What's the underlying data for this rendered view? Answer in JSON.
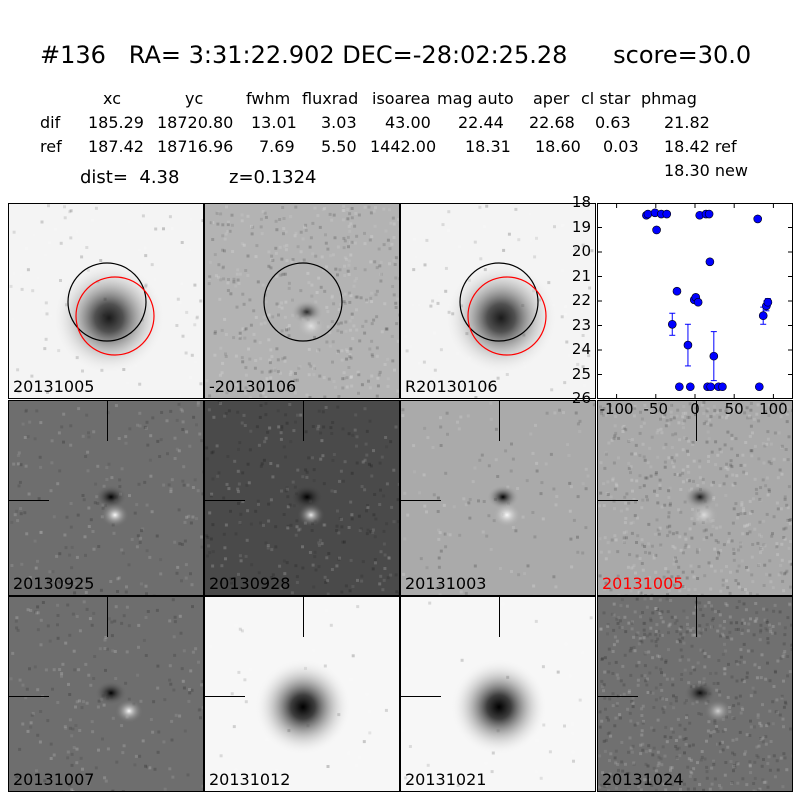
{
  "header": {
    "title": "#136   RA= 3:31:22.902 DEC=-28:02:25.28      score=30.0",
    "columns": [
      "xc",
      "yc",
      "fwhm",
      "fluxrad",
      "isoarea",
      "mag auto",
      "aper",
      "cl star",
      "phmag"
    ],
    "rows": [
      {
        "label": "dif",
        "values": [
          "185.29",
          "18720.80",
          "13.01",
          "3.03",
          "43.00",
          "22.44",
          "22.68",
          "0.63",
          "21.82"
        ]
      },
      {
        "label": "ref",
        "values": [
          "187.42",
          "18716.96",
          "7.69",
          "5.50",
          "1442.00",
          "18.31",
          "18.60",
          "0.03",
          "18.42 ref"
        ]
      }
    ],
    "extra_phmag": "18.30 new",
    "dist_text": "dist=  4.38",
    "z_text": "z=0.1324"
  },
  "panels": [
    {
      "label": "20131005",
      "style": "ref",
      "circles": true,
      "red": false
    },
    {
      "label": "-20130106",
      "style": "dif",
      "circles": true,
      "red": false
    },
    {
      "label": "R20130106",
      "style": "ref",
      "circles": true,
      "red": false
    },
    {
      "label": "20130925",
      "style": "dipole-dark",
      "circles": false,
      "red": false
    },
    {
      "label": "20130928",
      "style": "dipole-darker",
      "circles": false,
      "red": false
    },
    {
      "label": "20131003",
      "style": "dipole-light",
      "circles": false,
      "red": false
    },
    {
      "label": "20131005",
      "style": "noisy",
      "circles": false,
      "red": true
    },
    {
      "label": "20131007",
      "style": "dipole-dark",
      "circles": false,
      "red": false
    },
    {
      "label": "20131012",
      "style": "smooth",
      "circles": false,
      "red": false
    },
    {
      "label": "20131021",
      "style": "smooth",
      "circles": false,
      "red": false
    },
    {
      "label": "20131024",
      "style": "noisy-dark",
      "circles": false,
      "red": false
    }
  ],
  "chart_data": {
    "type": "scatter",
    "title": "",
    "xlabel": "",
    "ylabel": "",
    "xlim": [
      -125,
      125
    ],
    "ylim": [
      26,
      18
    ],
    "x_ticks": [
      -100,
      -50,
      0,
      50,
      100
    ],
    "y_ticks": [
      18,
      19,
      20,
      21,
      22,
      23,
      24,
      25,
      26
    ],
    "marker_color": "#0000ff",
    "points": [
      {
        "x": -62,
        "y": 18.5
      },
      {
        "x": -60,
        "y": 18.45
      },
      {
        "x": -51,
        "y": 18.4
      },
      {
        "x": -43,
        "y": 18.45
      },
      {
        "x": -36,
        "y": 18.45
      },
      {
        "x": -49,
        "y": 19.1
      },
      {
        "x": 6,
        "y": 18.5
      },
      {
        "x": 14,
        "y": 18.45
      },
      {
        "x": 18,
        "y": 18.45
      },
      {
        "x": 80,
        "y": 18.65
      },
      {
        "x": 19,
        "y": 20.4
      },
      {
        "x": -23,
        "y": 21.6
      },
      {
        "x": -1,
        "y": 21.95
      },
      {
        "x": 1,
        "y": 21.85
      },
      {
        "x": 4,
        "y": 22.05
      },
      {
        "x": -29,
        "y": 22.95,
        "err": 0.45
      },
      {
        "x": -9,
        "y": 23.8,
        "err": 0.85
      },
      {
        "x": 24,
        "y": 24.25,
        "err": 1.0
      },
      {
        "x": 87,
        "y": 22.6,
        "err": 0.35
      },
      {
        "x": 91,
        "y": 22.2,
        "err": 0.2
      },
      {
        "x": 93,
        "y": 22.05,
        "err": 0.15
      },
      {
        "x": -20,
        "y": 25.5
      },
      {
        "x": -6,
        "y": 25.5
      },
      {
        "x": 16,
        "y": 25.5
      },
      {
        "x": 20,
        "y": 25.5
      },
      {
        "x": 30,
        "y": 25.5
      },
      {
        "x": 35,
        "y": 25.5
      },
      {
        "x": 82,
        "y": 25.5
      }
    ]
  }
}
